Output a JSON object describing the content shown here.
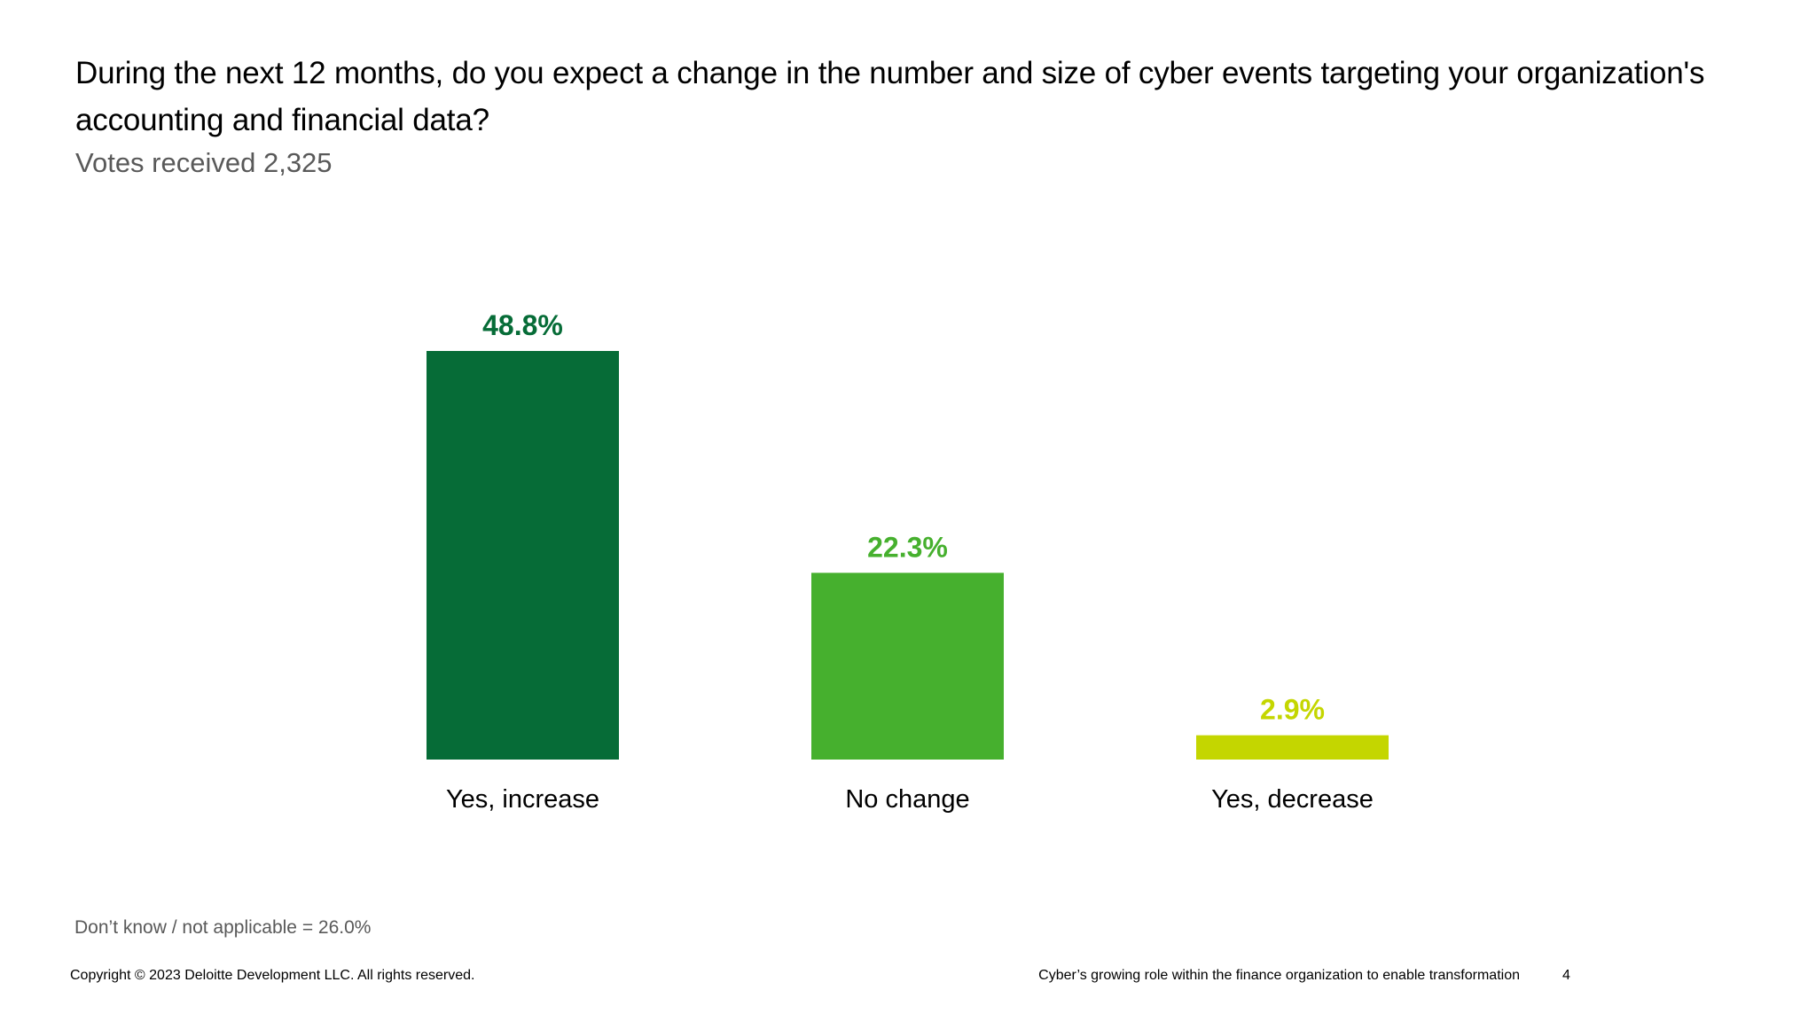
{
  "slide": {
    "title": "During the next 12 months, do you expect a change in the number and size of cyber events targeting your organization's accounting and financial data?",
    "subtitle": "Votes received 2,325",
    "footnote": "Don’t know / not applicable = 26.0%",
    "footer_left": "Copyright © 2023 Deloitte Development LLC. All rights reserved.",
    "footer_right": "Cyber’s growing role within the finance organization to enable transformation",
    "page_number": "4"
  },
  "chart_data": {
    "type": "bar",
    "title": "During the next 12 months, do you expect a change in the number and size of cyber events targeting your organization's accounting and financial data?",
    "subtitle": "Votes received 2,325",
    "xlabel": "",
    "ylabel": "",
    "ylim": [
      0,
      48.8
    ],
    "grid": false,
    "legend": "none",
    "categories": [
      "Yes, increase",
      "No change",
      "Yes, decrease"
    ],
    "values": [
      48.8,
      22.3,
      2.9
    ],
    "value_labels": [
      "48.8%",
      "22.3%",
      "2.9%"
    ],
    "colors": [
      "#066C37",
      "#46B02E",
      "#C4D600"
    ],
    "unit": "%",
    "annotation": "Don’t know / not applicable = 26.0%"
  }
}
